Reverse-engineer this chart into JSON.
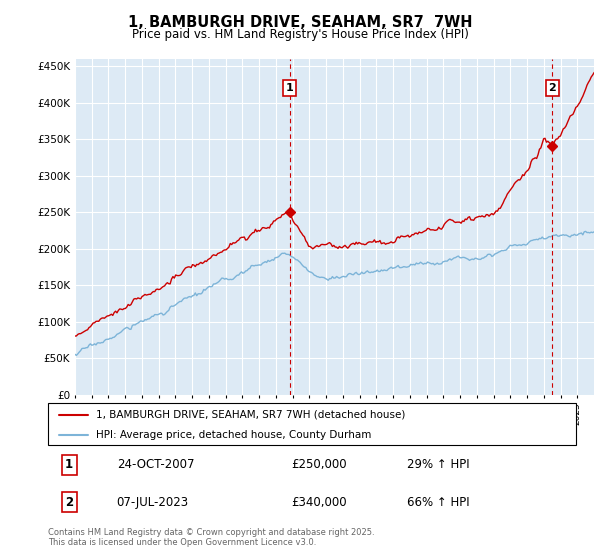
{
  "title": "1, BAMBURGH DRIVE, SEAHAM, SR7  7WH",
  "subtitle": "Price paid vs. HM Land Registry's House Price Index (HPI)",
  "ylim": [
    0,
    460000
  ],
  "yticks": [
    0,
    50000,
    100000,
    150000,
    200000,
    250000,
    300000,
    350000,
    400000,
    450000
  ],
  "ytick_labels": [
    "£0",
    "£50K",
    "£100K",
    "£150K",
    "£200K",
    "£250K",
    "£300K",
    "£350K",
    "£400K",
    "£450K"
  ],
  "hpi_color": "#7db4d8",
  "price_color": "#cc0000",
  "vline_color": "#cc0000",
  "plot_bg": "#ddeaf5",
  "grid_color": "#ffffff",
  "legend_label_red": "1, BAMBURGH DRIVE, SEAHAM, SR7 7WH (detached house)",
  "legend_label_blue": "HPI: Average price, detached house, County Durham",
  "transaction1_date": "24-OCT-2007",
  "transaction1_price": 250000,
  "transaction1_hpi": "29% ↑ HPI",
  "transaction1_label": "1",
  "transaction1_x": 2007.82,
  "transaction1_y": 250000,
  "transaction2_date": "07-JUL-2023",
  "transaction2_price": 340000,
  "transaction2_label": "2",
  "transaction2_x": 2023.52,
  "transaction2_y": 340000,
  "transaction2_hpi": "66% ↑ HPI",
  "footer": "Contains HM Land Registry data © Crown copyright and database right 2025.\nThis data is licensed under the Open Government Licence v3.0.",
  "xmin": 1995,
  "xmax": 2026
}
